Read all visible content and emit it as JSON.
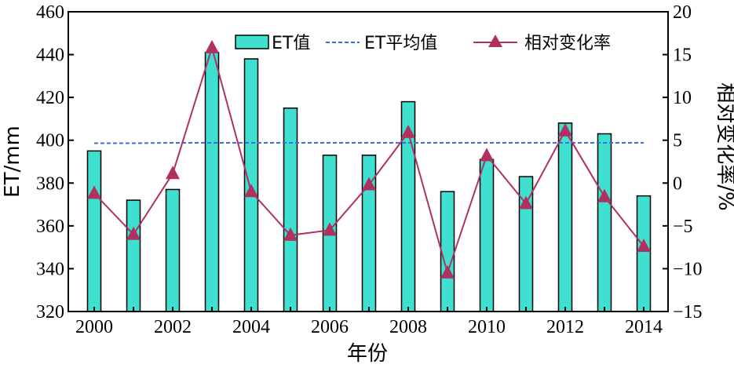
{
  "chart_data": {
    "type": "bar",
    "title": "",
    "categories": [
      "2000",
      "2001",
      "2002",
      "2003",
      "2004",
      "2005",
      "2006",
      "2007",
      "2008",
      "2009",
      "2010",
      "2011",
      "2012",
      "2013",
      "2014"
    ],
    "x_tick_labels": [
      "2000",
      "2002",
      "2004",
      "2006",
      "2008",
      "2010",
      "2012",
      "2014"
    ],
    "xlabel": "年份",
    "ylabel": "ET/mm",
    "ylabel_right": "相对变化率/%",
    "ylim": [
      320,
      460
    ],
    "y_ticks": [
      320,
      340,
      360,
      380,
      400,
      420,
      440,
      460
    ],
    "ylim_right": [
      -15,
      20
    ],
    "y_ticks_right": [
      -15,
      -10,
      -5,
      0,
      5,
      10,
      15,
      20
    ],
    "y_tick_labels_right": [
      "−15",
      "−10",
      "−5",
      "0",
      "5",
      "10",
      "15",
      "20"
    ],
    "legend_position": "top",
    "grid": false,
    "series": [
      {
        "name": "ET值",
        "type": "bar",
        "axis": "left",
        "color": "#40E0D0",
        "values": [
          395,
          372,
          377,
          441,
          438,
          415,
          393,
          393,
          418,
          376,
          391,
          383,
          408,
          403,
          374
        ]
      },
      {
        "name": "ET平均值",
        "type": "line",
        "style": "dashed",
        "axis": "left",
        "color": "#3a6fd8",
        "values": [
          398.6,
          398.6,
          398.8,
          398.8,
          398.8,
          398.8,
          398.8,
          398.8,
          398.8,
          398.8,
          398.8,
          398.8,
          398.8,
          398.8,
          398.8
        ]
      },
      {
        "name": "相对变化率",
        "type": "line",
        "marker": "triangle",
        "axis": "right",
        "color": "#b03060",
        "values": [
          -1.2,
          -6.0,
          1.1,
          15.8,
          -1.0,
          -6.1,
          -5.5,
          -0.2,
          5.9,
          -10.5,
          3.2,
          -2.4,
          6.1,
          -1.6,
          -7.4
        ]
      }
    ]
  }
}
